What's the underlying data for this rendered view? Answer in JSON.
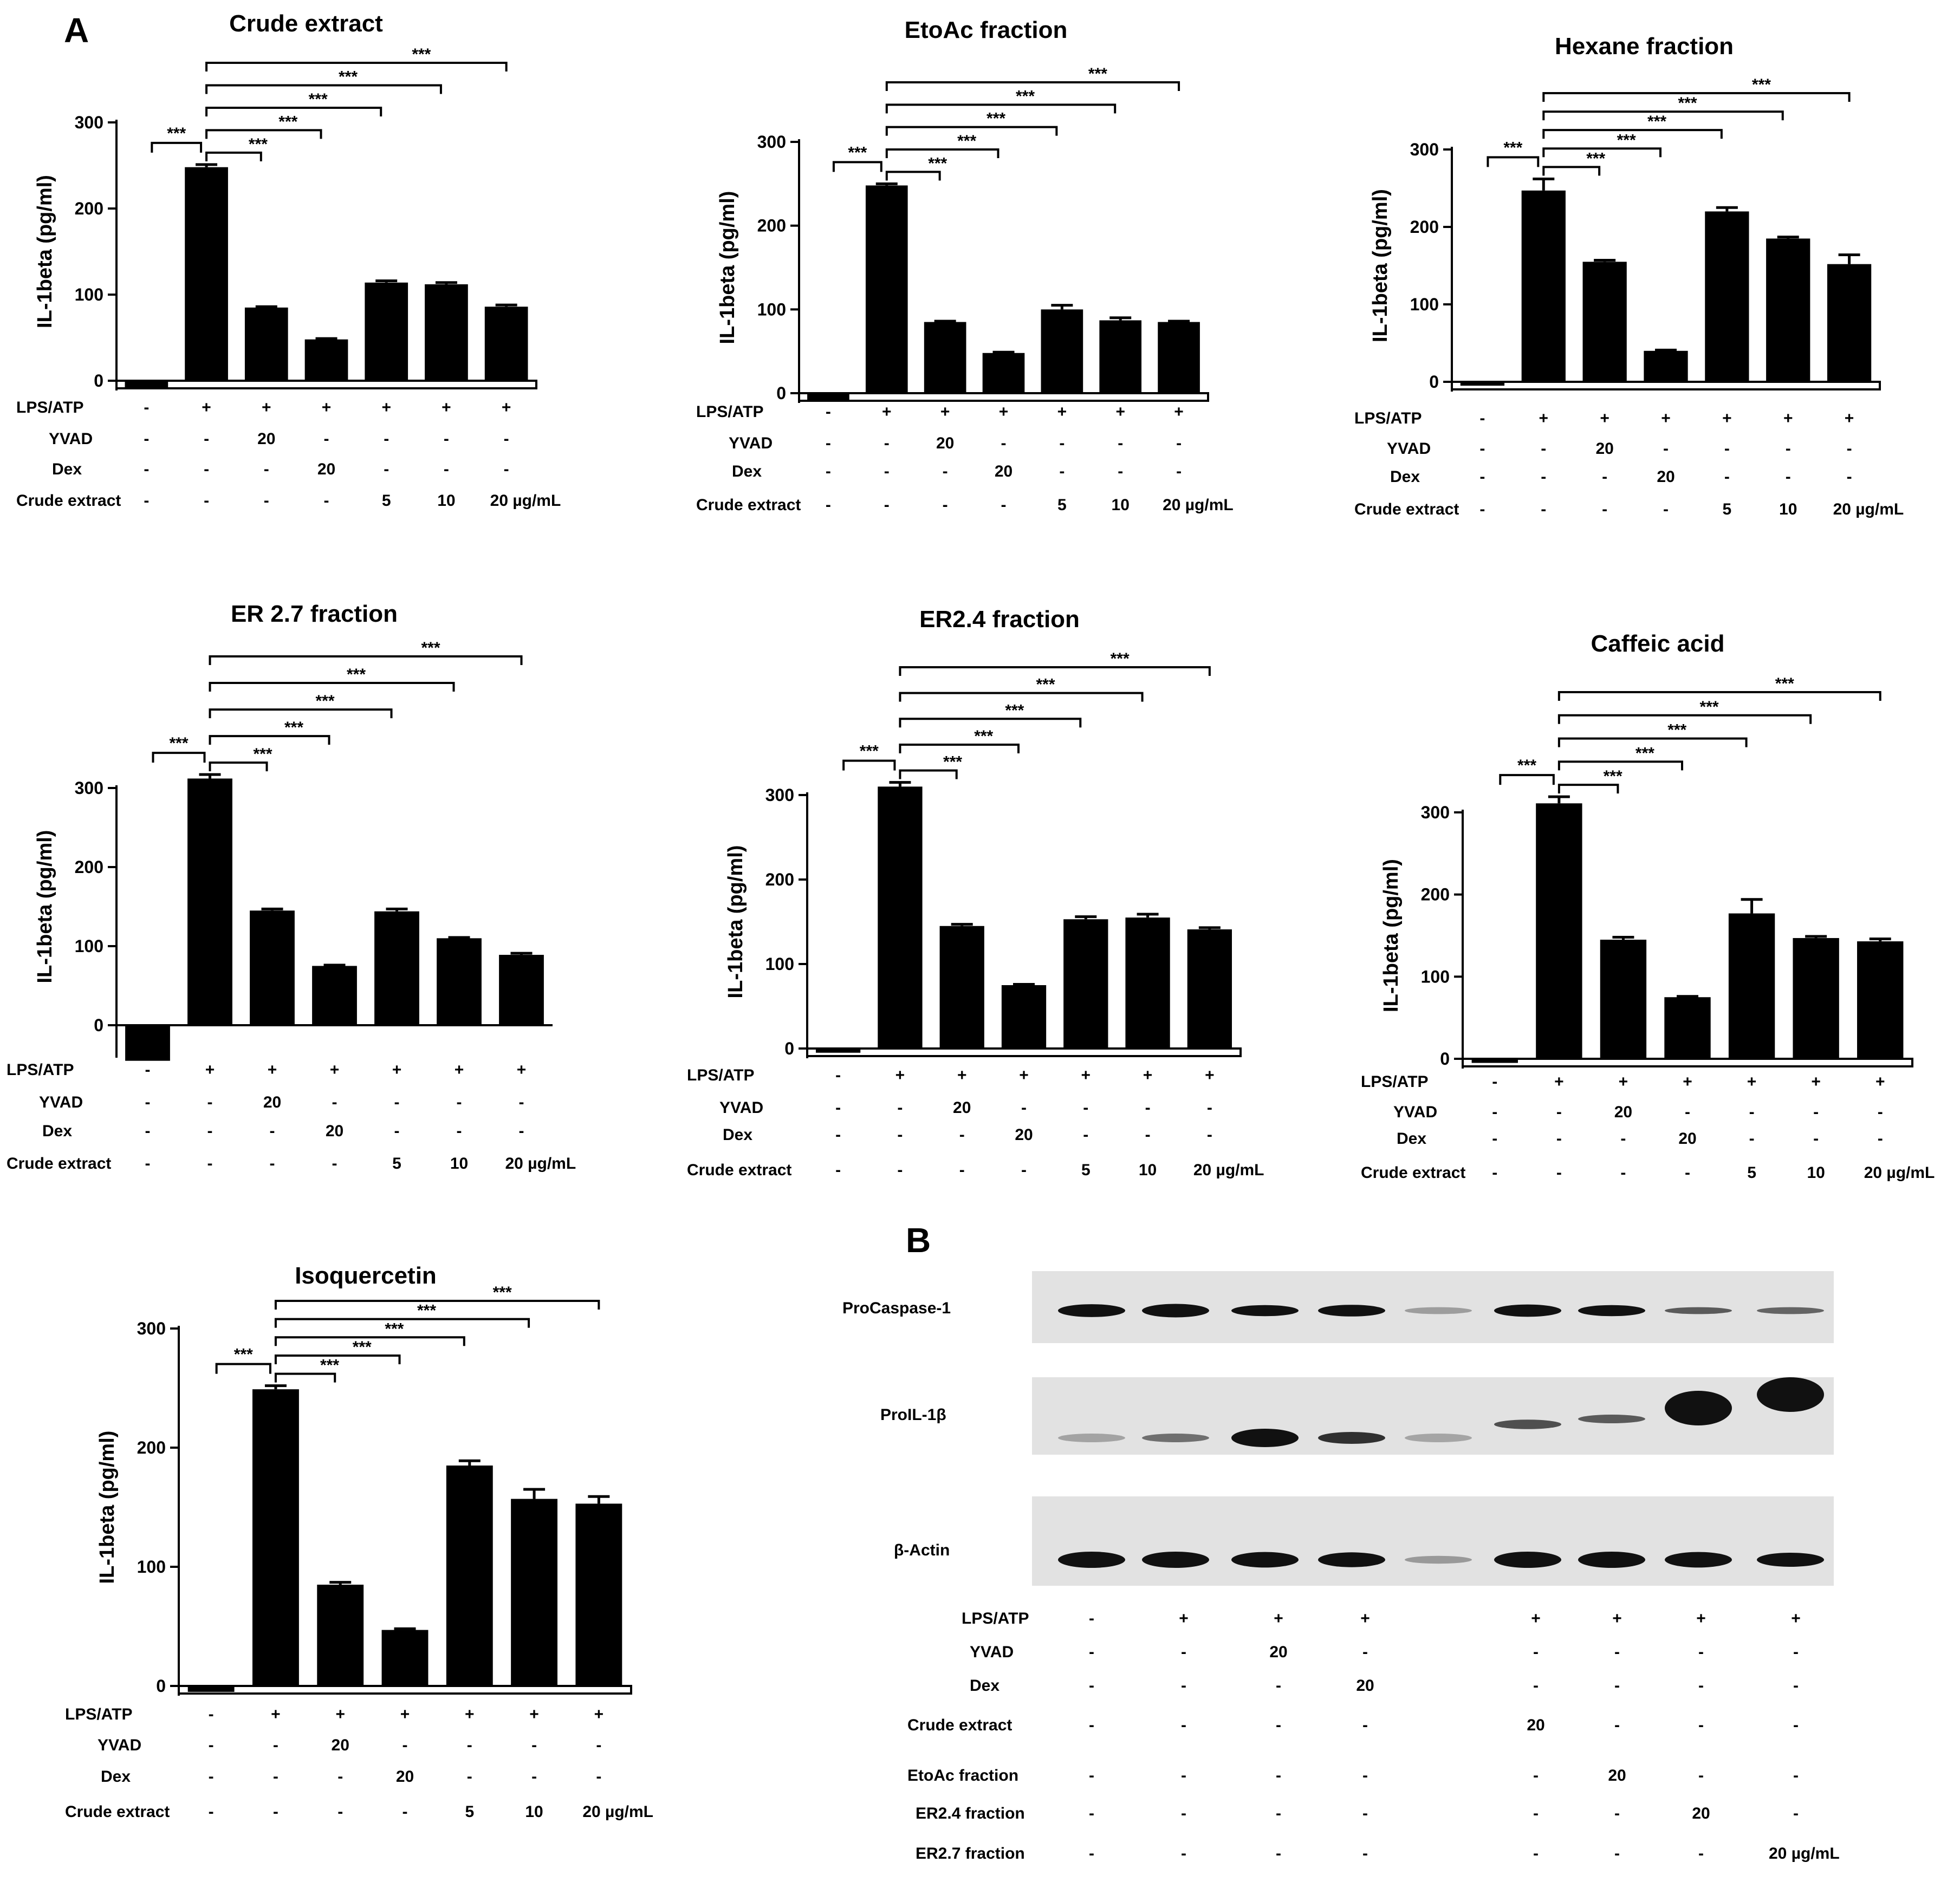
{
  "panel_a_label": "A",
  "panel_b_label": "B",
  "colors": {
    "bar": "#000000",
    "blot_bg": "#e2e2e2",
    "band": "#111111"
  },
  "row_labels": {
    "lps": "LPS/ATP",
    "yvad": "YVAD",
    "dex": "Dex",
    "crude": "Crude extract"
  },
  "cond_cells": {
    "lps": [
      "-",
      "+",
      "+",
      "+",
      "+",
      "+",
      "+"
    ],
    "yvad": [
      "-",
      "-",
      "20",
      "-",
      "-",
      "-",
      "-"
    ],
    "dex": [
      "-",
      "-",
      "-",
      "20",
      "-",
      "-",
      "-"
    ],
    "crude": [
      "-",
      "-",
      "-",
      "-",
      "5",
      "10",
      "20 µg/mL"
    ]
  },
  "sig_label": "***",
  "chart_data": [
    {
      "type": "bar",
      "title": "Crude extract",
      "ylabel": "IL-1beta (pg/ml)",
      "ylim": [
        0,
        300
      ],
      "yticks": [
        0,
        100,
        200,
        300
      ],
      "values": [
        -8,
        248,
        85,
        48,
        114,
        112,
        86
      ],
      "errors": [
        0,
        3,
        1,
        1,
        2,
        2,
        2
      ]
    },
    {
      "type": "bar",
      "title": "EtoAc fraction",
      "ylabel": "IL-1beta (pg/ml)",
      "ylim": [
        0,
        300
      ],
      "yticks": [
        0,
        100,
        200,
        300
      ],
      "values": [
        -8,
        248,
        85,
        48,
        100,
        87,
        85
      ],
      "errors": [
        0,
        2,
        1,
        1,
        5,
        3,
        1
      ]
    },
    {
      "type": "bar",
      "title": "Hexane fraction",
      "ylabel": "IL-1beta (pg/ml)",
      "ylim": [
        0,
        300
      ],
      "yticks": [
        0,
        100,
        200,
        300
      ],
      "values": [
        -5,
        247,
        155,
        40,
        220,
        185,
        152
      ],
      "errors": [
        0,
        15,
        2,
        1,
        5,
        2,
        12
      ]
    },
    {
      "type": "bar",
      "title": "ER 2.7 fraction",
      "ylabel": "IL-1beta (pg/ml)",
      "ylim": [
        0,
        300
      ],
      "yticks": [
        0,
        100,
        200,
        300
      ],
      "values": [
        -45,
        312,
        145,
        75,
        144,
        110,
        89
      ],
      "errors": [
        0,
        5,
        2,
        1,
        3,
        1,
        2
      ]
    },
    {
      "type": "bar",
      "title": "ER2.4 fraction",
      "ylabel": "IL-1beta (pg/ml)",
      "ylim": [
        0,
        300
      ],
      "yticks": [
        0,
        100,
        200,
        300
      ],
      "values": [
        -5,
        310,
        145,
        75,
        153,
        155,
        141
      ],
      "errors": [
        0,
        5,
        2,
        1,
        3,
        4,
        2
      ]
    },
    {
      "type": "bar",
      "title": "Caffeic acid",
      "ylabel": "IL-1beta (pg/ml)",
      "ylim": [
        0,
        300
      ],
      "yticks": [
        0,
        100,
        200,
        300
      ],
      "values": [
        -5,
        311,
        145,
        75,
        177,
        147,
        143
      ],
      "errors": [
        0,
        8,
        3,
        1,
        17,
        2,
        3
      ]
    },
    {
      "type": "bar",
      "title": "Isoquercetin",
      "ylabel": "IL-1beta (pg/ml)",
      "ylim": [
        0,
        300
      ],
      "yticks": [
        0,
        100,
        200,
        300
      ],
      "values": [
        -5,
        249,
        85,
        47,
        185,
        157,
        153
      ],
      "errors": [
        0,
        3,
        2,
        1,
        4,
        8,
        6
      ]
    }
  ],
  "blot": {
    "bands": [
      "ProCaspase-1",
      "ProIL-1β",
      "β-Actin"
    ],
    "row_labels": [
      "LPS/ATP",
      "YVAD",
      "Dex",
      "Crude  extract",
      "EtoAc fraction",
      "ER2.4 fraction",
      "ER2.7 fraction"
    ],
    "cells": [
      [
        "-",
        "+",
        "+",
        "+",
        "+",
        "+",
        "+",
        "+"
      ],
      [
        "-",
        "-",
        "20",
        "-",
        "-",
        "-",
        "-",
        "-"
      ],
      [
        "-",
        "-",
        "-",
        "20",
        "-",
        "-",
        "-",
        "-"
      ],
      [
        "-",
        "-",
        "-",
        "-",
        "20",
        "-",
        "-",
        "-"
      ],
      [
        "-",
        "-",
        "-",
        "-",
        "-",
        "20",
        "-",
        "-"
      ],
      [
        "-",
        "-",
        "-",
        "-",
        "-",
        "-",
        "20",
        "-"
      ],
      [
        "-",
        "-",
        "-",
        "-",
        "-",
        "-",
        "-",
        "20 µg/mL"
      ]
    ]
  }
}
